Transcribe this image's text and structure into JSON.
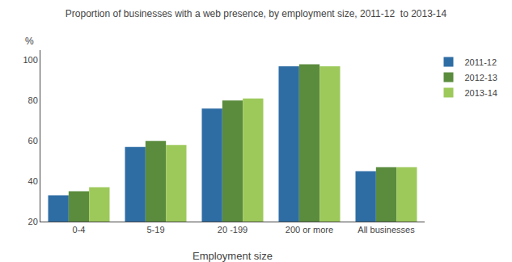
{
  "chart_data": {
    "type": "bar",
    "title": "Proportion of businesses with a web presence, by employment size, 2011-12  to 2013-14",
    "xlabel": "Employment size",
    "ylabel": "%",
    "categories": [
      "0-4",
      "5-19",
      "20 -199",
      "200 or more",
      "All businesses"
    ],
    "series": [
      {
        "name": "2011-12",
        "color": "#2E6DA4",
        "values": [
          33,
          57,
          76,
          97,
          45
        ]
      },
      {
        "name": "2012-13",
        "color": "#5B8C3E",
        "values": [
          35,
          60,
          80,
          98,
          47
        ]
      },
      {
        "name": "2013-14",
        "color": "#9DC95B",
        "values": [
          37,
          58,
          81,
          97,
          47
        ]
      }
    ],
    "ylim": [
      20,
      105
    ],
    "yticks": [
      20,
      40,
      60,
      80,
      100
    ],
    "grid": false,
    "legend": "upper right"
  }
}
